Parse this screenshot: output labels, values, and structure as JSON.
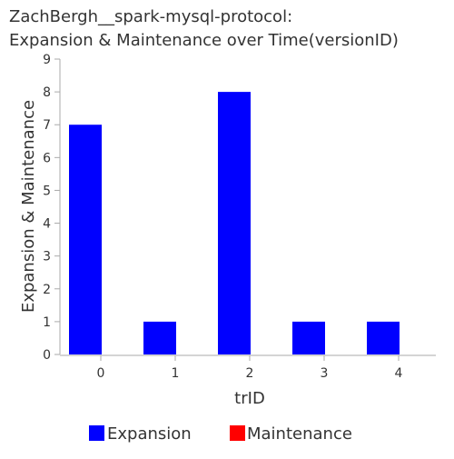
{
  "chart_data": {
    "type": "bar",
    "title": [
      "ZachBergh__spark-mysql-protocol:",
      "Expansion & Maintenance over Time(versionID)"
    ],
    "xlabel": "trID",
    "ylabel": "Expansion & Maintenance",
    "categories": [
      "0",
      "1",
      "2",
      "3",
      "4"
    ],
    "ylim": [
      0,
      9
    ],
    "yticks": [
      "0",
      "1",
      "2",
      "3",
      "4",
      "5",
      "6",
      "7",
      "8",
      "9"
    ],
    "series": [
      {
        "name": "Expansion",
        "color": "#0000ff",
        "values": [
          7,
          1,
          8,
          1,
          1
        ]
      },
      {
        "name": "Maintenance",
        "color": "#ff0000",
        "values": [
          0,
          0,
          0,
          0,
          0
        ]
      }
    ],
    "legend_position": "bottom",
    "grid": false
  }
}
